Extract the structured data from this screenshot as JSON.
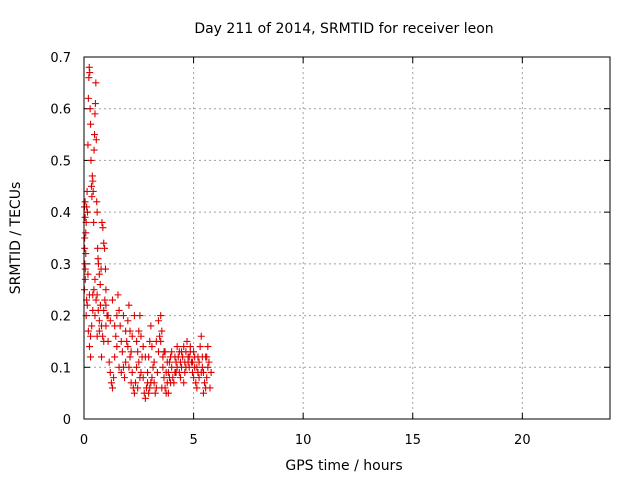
{
  "chart_data": {
    "type": "scatter",
    "title": "Day 211 of 2014, SRMTID for receiver leon",
    "xlabel": "GPS time / hours",
    "ylabel": "SRMTID / TECUs",
    "xlim": [
      0,
      24
    ],
    "ylim": [
      0,
      0.7
    ],
    "xticks": [
      0,
      5,
      10,
      15,
      20
    ],
    "yticks": [
      0,
      0.1,
      0.2,
      0.3,
      0.4,
      0.5,
      0.6,
      0.7
    ],
    "grid": true,
    "marker": "+",
    "color": "#e00000",
    "series": [
      {
        "name": "leon",
        "points": [
          [
            0.02,
            0.25
          ],
          [
            0.03,
            0.35
          ],
          [
            0.04,
            0.3
          ],
          [
            0.05,
            0.42
          ],
          [
            0.06,
            0.27
          ],
          [
            0.08,
            0.32
          ],
          [
            0.1,
            0.38
          ],
          [
            0.12,
            0.41
          ],
          [
            0.14,
            0.44
          ],
          [
            0.16,
            0.4
          ],
          [
            0.18,
            0.53
          ],
          [
            0.2,
            0.62
          ],
          [
            0.22,
            0.66
          ],
          [
            0.24,
            0.68
          ],
          [
            0.26,
            0.67
          ],
          [
            0.28,
            0.6
          ],
          [
            0.3,
            0.57
          ],
          [
            0.32,
            0.5
          ],
          [
            0.34,
            0.45
          ],
          [
            0.36,
            0.43
          ],
          [
            0.38,
            0.47
          ],
          [
            0.4,
            0.46
          ],
          [
            0.42,
            0.44
          ],
          [
            0.44,
            0.38
          ],
          [
            0.46,
            0.52
          ],
          [
            0.48,
            0.55
          ],
          [
            0.5,
            0.59
          ],
          [
            0.52,
            0.61
          ],
          [
            0.54,
            0.65
          ],
          [
            0.56,
            0.54
          ],
          [
            0.58,
            0.42
          ],
          [
            0.6,
            0.4
          ],
          [
            0.62,
            0.33
          ],
          [
            0.64,
            0.31
          ],
          [
            0.66,
            0.3
          ],
          [
            0.7,
            0.28
          ],
          [
            0.74,
            0.26
          ],
          [
            0.78,
            0.29
          ],
          [
            0.82,
            0.38
          ],
          [
            0.86,
            0.37
          ],
          [
            0.9,
            0.34
          ],
          [
            0.94,
            0.33
          ],
          [
            0.98,
            0.29
          ],
          [
            1.0,
            0.22
          ],
          [
            0.1,
            0.2
          ],
          [
            0.15,
            0.22
          ],
          [
            0.2,
            0.17
          ],
          [
            0.25,
            0.14
          ],
          [
            0.3,
            0.12
          ],
          [
            0.35,
            0.18
          ],
          [
            0.4,
            0.24
          ],
          [
            0.45,
            0.25
          ],
          [
            0.5,
            0.2
          ],
          [
            0.55,
            0.23
          ],
          [
            0.6,
            0.24
          ],
          [
            0.65,
            0.21
          ],
          [
            0.7,
            0.19
          ],
          [
            0.75,
            0.22
          ],
          [
            0.8,
            0.18
          ],
          [
            0.85,
            0.16
          ],
          [
            0.9,
            0.21
          ],
          [
            0.95,
            0.23
          ],
          [
            1.0,
            0.25
          ],
          [
            1.05,
            0.2
          ],
          [
            1.1,
            0.15
          ],
          [
            1.15,
            0.11
          ],
          [
            1.2,
            0.09
          ],
          [
            1.25,
            0.07
          ],
          [
            1.3,
            0.06
          ],
          [
            1.35,
            0.08
          ],
          [
            1.4,
            0.12
          ],
          [
            1.45,
            0.16
          ],
          [
            1.5,
            0.2
          ],
          [
            1.55,
            0.24
          ],
          [
            1.6,
            0.21
          ],
          [
            1.65,
            0.18
          ],
          [
            1.7,
            0.15
          ],
          [
            1.75,
            0.13
          ],
          [
            1.8,
            0.1
          ],
          [
            1.85,
            0.08
          ],
          [
            1.9,
            0.11
          ],
          [
            1.95,
            0.15
          ],
          [
            2.0,
            0.19
          ],
          [
            2.05,
            0.22
          ],
          [
            2.1,
            0.17
          ],
          [
            2.15,
            0.13
          ],
          [
            2.2,
            0.09
          ],
          [
            2.25,
            0.06
          ],
          [
            2.3,
            0.05
          ],
          [
            2.35,
            0.07
          ],
          [
            2.4,
            0.1
          ],
          [
            2.45,
            0.13
          ],
          [
            2.5,
            0.17
          ],
          [
            2.55,
            0.2
          ],
          [
            2.6,
            0.16
          ],
          [
            2.65,
            0.12
          ],
          [
            2.7,
            0.08
          ],
          [
            2.75,
            0.05
          ],
          [
            2.8,
            0.04
          ],
          [
            2.85,
            0.06
          ],
          [
            2.9,
            0.09
          ],
          [
            2.95,
            0.12
          ],
          [
            3.0,
            0.15
          ],
          [
            3.05,
            0.18
          ],
          [
            3.1,
            0.14
          ],
          [
            3.15,
            0.1
          ],
          [
            3.2,
            0.07
          ],
          [
            3.25,
            0.05
          ],
          [
            3.3,
            0.06
          ],
          [
            3.35,
            0.09
          ],
          [
            3.4,
            0.13
          ],
          [
            3.45,
            0.16
          ],
          [
            3.5,
            0.2
          ],
          [
            3.55,
            0.17
          ],
          [
            3.6,
            0.12
          ],
          [
            3.65,
            0.08
          ],
          [
            3.7,
            0.06
          ],
          [
            3.75,
            0.05
          ],
          [
            3.8,
            0.07
          ],
          [
            3.85,
            0.09
          ],
          [
            3.9,
            0.11
          ],
          [
            3.95,
            0.12
          ],
          [
            4.0,
            0.1
          ],
          [
            4.05,
            0.08
          ],
          [
            4.1,
            0.07
          ],
          [
            4.15,
            0.09
          ],
          [
            4.2,
            0.11
          ],
          [
            4.25,
            0.1
          ],
          [
            4.3,
            0.12
          ],
          [
            4.35,
            0.13
          ],
          [
            4.4,
            0.11
          ],
          [
            4.45,
            0.1
          ],
          [
            4.5,
            0.12
          ],
          [
            4.55,
            0.14
          ],
          [
            4.6,
            0.11
          ],
          [
            4.65,
            0.13
          ],
          [
            4.7,
            0.15
          ],
          [
            4.75,
            0.12
          ],
          [
            4.8,
            0.1
          ],
          [
            4.85,
            0.13
          ],
          [
            4.9,
            0.11
          ],
          [
            4.95,
            0.09
          ],
          [
            5.0,
            0.08
          ],
          [
            5.05,
            0.1
          ],
          [
            5.1,
            0.07
          ],
          [
            5.15,
            0.06
          ],
          [
            5.2,
            0.09
          ],
          [
            5.25,
            0.11
          ],
          [
            5.3,
            0.14
          ],
          [
            5.35,
            0.16
          ],
          [
            5.4,
            0.12
          ],
          [
            5.45,
            0.09
          ],
          [
            5.5,
            0.07
          ],
          [
            5.55,
            0.06
          ],
          [
            5.6,
            0.08
          ],
          [
            5.65,
            0.1
          ],
          [
            5.7,
            0.11
          ],
          [
            5.75,
            0.06
          ],
          [
            1.2,
            0.19
          ],
          [
            1.3,
            0.23
          ],
          [
            1.4,
            0.18
          ],
          [
            1.5,
            0.14
          ],
          [
            1.6,
            0.1
          ],
          [
            1.7,
            0.09
          ],
          [
            1.8,
            0.2
          ],
          [
            1.9,
            0.17
          ],
          [
            2.0,
            0.14
          ],
          [
            2.1,
            0.12
          ],
          [
            2.2,
            0.16
          ],
          [
            2.3,
            0.2
          ],
          [
            2.4,
            0.15
          ],
          [
            2.5,
            0.11
          ],
          [
            2.6,
            0.09
          ],
          [
            2.7,
            0.14
          ],
          [
            2.8,
            0.12
          ],
          [
            2.9,
            0.07
          ],
          [
            3.0,
            0.06
          ],
          [
            3.1,
            0.08
          ],
          [
            3.2,
            0.11
          ],
          [
            3.3,
            0.15
          ],
          [
            3.4,
            0.19
          ],
          [
            3.5,
            0.15
          ],
          [
            3.6,
            0.1
          ],
          [
            3.7,
            0.13
          ],
          [
            3.8,
            0.11
          ],
          [
            3.9,
            0.08
          ],
          [
            4.0,
            0.13
          ],
          [
            4.2,
            0.09
          ],
          [
            4.4,
            0.08
          ],
          [
            4.6,
            0.09
          ],
          [
            4.8,
            0.12
          ],
          [
            5.0,
            0.13
          ],
          [
            5.2,
            0.12
          ],
          [
            5.4,
            0.1
          ],
          [
            5.6,
            0.12
          ],
          [
            5.8,
            0.09
          ],
          [
            1.1,
            0.2
          ],
          [
            1.0,
            0.18
          ],
          [
            0.9,
            0.15
          ],
          [
            0.8,
            0.12
          ],
          [
            0.7,
            0.17
          ],
          [
            0.6,
            0.16
          ],
          [
            0.5,
            0.27
          ],
          [
            0.4,
            0.21
          ],
          [
            0.3,
            0.16
          ],
          [
            0.25,
            0.24
          ],
          [
            0.18,
            0.28
          ],
          [
            0.12,
            0.23
          ],
          [
            0.08,
            0.36
          ],
          [
            0.05,
            0.39
          ],
          [
            0.02,
            0.41
          ],
          [
            0.03,
            0.33
          ],
          [
            0.06,
            0.29
          ],
          [
            2.05,
            0.1
          ],
          [
            2.15,
            0.07
          ],
          [
            2.45,
            0.06
          ],
          [
            2.55,
            0.08
          ],
          [
            2.95,
            0.05
          ],
          [
            3.05,
            0.07
          ],
          [
            3.55,
            0.06
          ],
          [
            3.65,
            0.13
          ],
          [
            3.75,
            0.09
          ],
          [
            3.85,
            0.05
          ],
          [
            4.25,
            0.14
          ],
          [
            4.45,
            0.13
          ],
          [
            4.65,
            0.1
          ],
          [
            4.85,
            0.14
          ],
          [
            5.05,
            0.12
          ],
          [
            5.25,
            0.08
          ],
          [
            5.45,
            0.05
          ],
          [
            5.65,
            0.14
          ],
          [
            5.55,
            0.12
          ],
          [
            5.35,
            0.09
          ],
          [
            5.15,
            0.1
          ],
          [
            4.95,
            0.11
          ],
          [
            4.75,
            0.11
          ],
          [
            4.55,
            0.07
          ],
          [
            4.35,
            0.09
          ],
          [
            4.15,
            0.12
          ],
          [
            3.95,
            0.07
          ]
        ]
      }
    ]
  }
}
